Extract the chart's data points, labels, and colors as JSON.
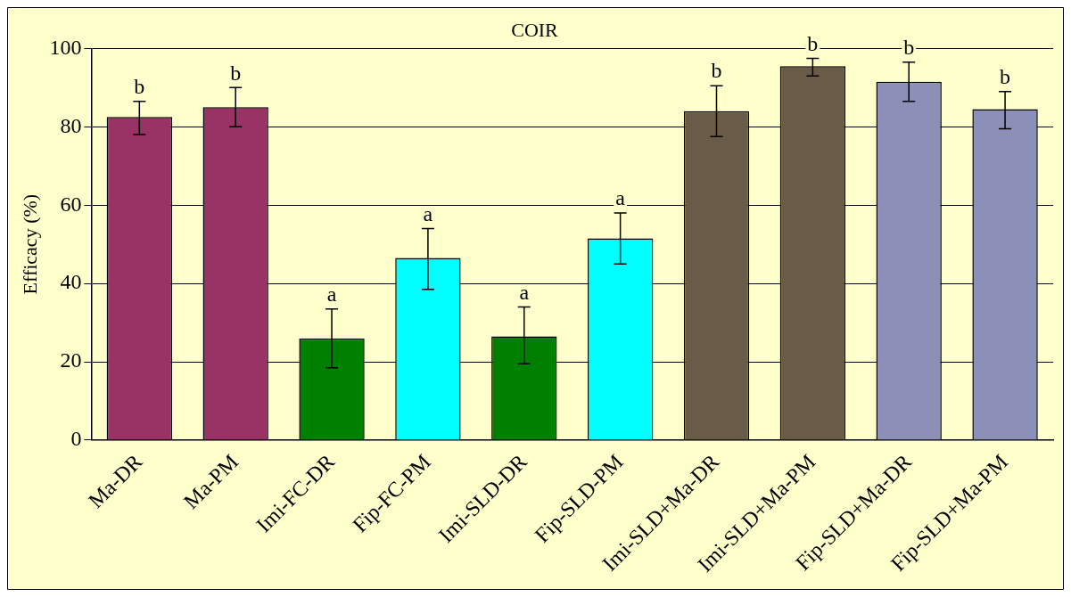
{
  "chart_data": {
    "type": "bar",
    "title": "COIR",
    "ylabel": "Efficacy (%)",
    "categories": [
      "Ma-DR",
      "Ma-PM",
      "Imi-FC-DR",
      "Fip-FC-PM",
      "Imi-SLD-DR",
      "Fip-SLD-PM",
      "Imi-SLD+Ma-DR",
      "Imi-SLD+Ma-PM",
      "Fip-SLD+Ma-DR",
      "Fip-SLD+Ma-PM"
    ],
    "values": [
      82.5,
      85,
      26,
      46.5,
      26.5,
      51.5,
      84,
      95.5,
      91.5,
      84.5
    ],
    "colors": [
      "#993366",
      "#993366",
      "#008000",
      "#00ffff",
      "#008000",
      "#00ffff",
      "#6a5a48",
      "#6a5a48",
      "#8c8fb8",
      "#8c8fb8"
    ],
    "errors": [
      [
        78,
        86.5
      ],
      [
        80,
        90
      ],
      [
        18.5,
        33.5
      ],
      [
        38.5,
        54
      ],
      [
        19.5,
        34
      ],
      [
        45,
        58
      ],
      [
        77.5,
        90.5
      ],
      [
        93,
        97.5
      ],
      [
        86.5,
        96.5
      ],
      [
        79.5,
        89
      ]
    ],
    "ylim": [
      0,
      100
    ],
    "yticks": [
      0,
      20,
      40,
      60,
      80,
      100
    ],
    "grid": "y",
    "annotations": [
      {
        "text": "b",
        "x": "Ma-DR",
        "y": 86.5
      },
      {
        "text": "b",
        "x": "Ma-PM",
        "y": 90
      },
      {
        "text": "a",
        "x": "Imi-FC-DR",
        "y": 33.5
      },
      {
        "text": "a",
        "x": "Fip-FC-PM",
        "y": 54
      },
      {
        "text": "a",
        "x": "Imi-SLD-DR",
        "y": 34
      },
      {
        "text": "a",
        "x": "Fip-SLD-PM",
        "y": 58
      },
      {
        "text": "b",
        "x": "Imi-SLD+Ma-DR",
        "y": 90.5
      },
      {
        "text": "b",
        "x": "Imi-SLD+Ma-PM",
        "y": 97.5
      },
      {
        "text": "b",
        "x": "Fip-SLD+Ma-DR",
        "y": 96.5
      },
      {
        "text": "b",
        "x": "Fip-SLD+Ma-PM",
        "y": 89
      }
    ]
  }
}
